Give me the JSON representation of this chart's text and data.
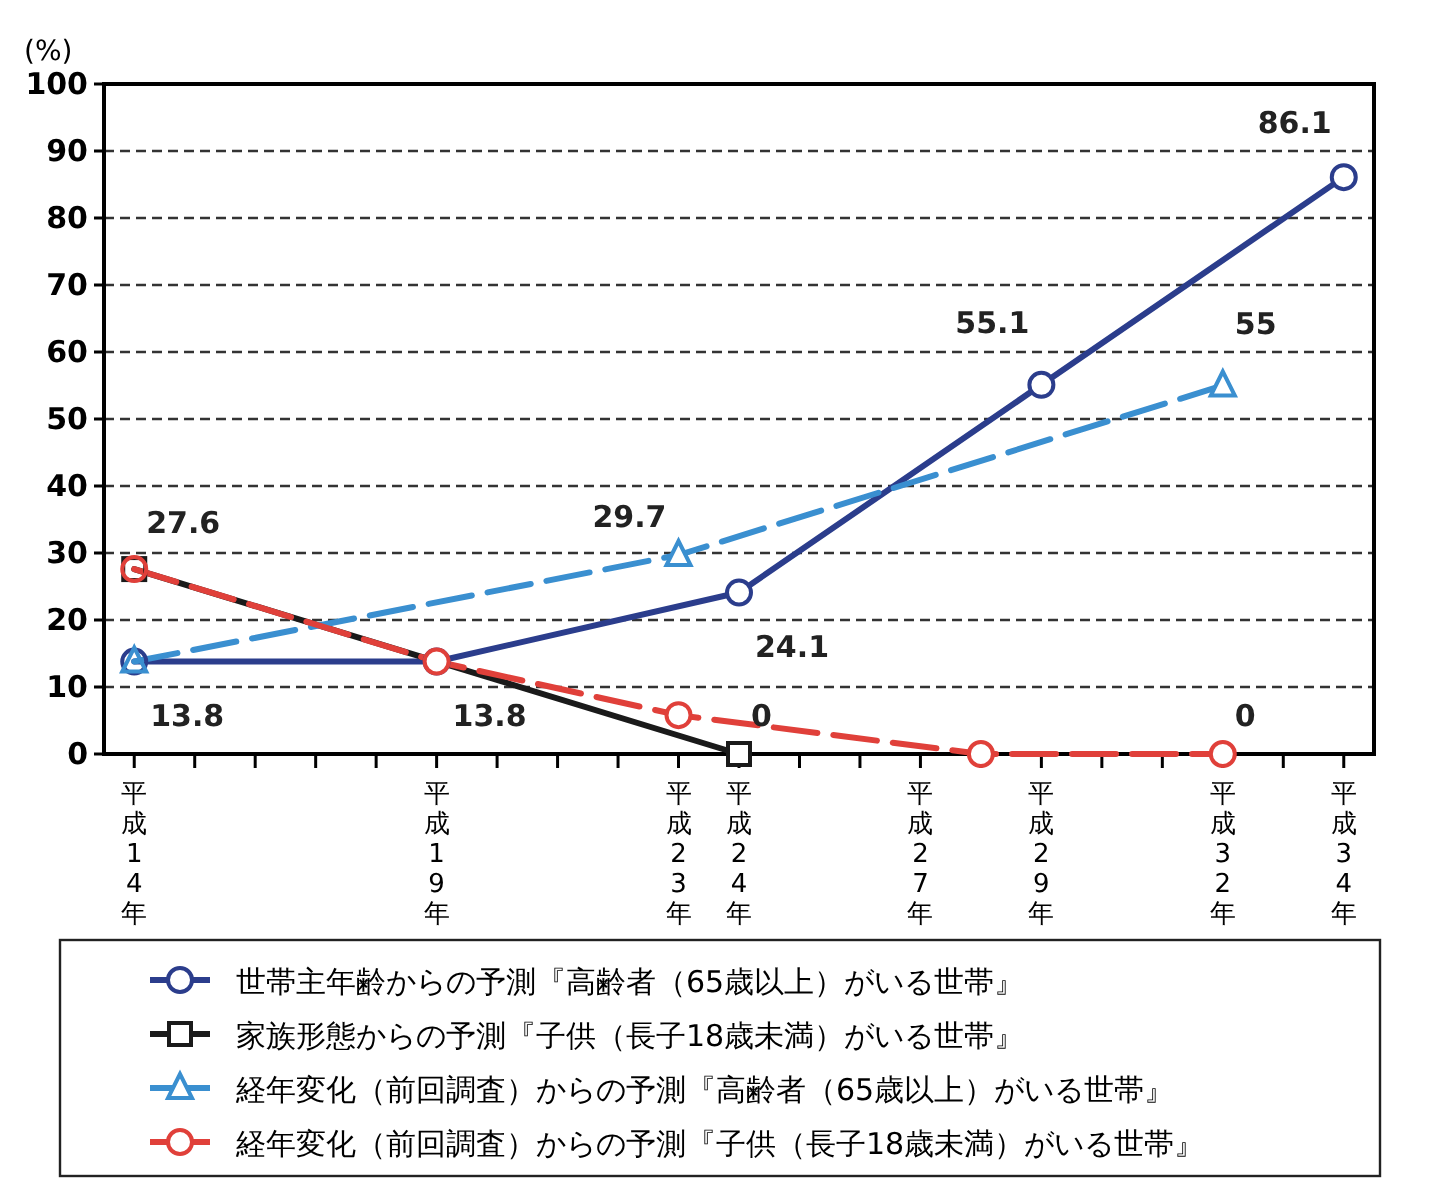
{
  "chart_data": {
    "type": "line",
    "ylabel": "(%)",
    "ylim": [
      0,
      100
    ],
    "yticks": [
      0,
      10,
      20,
      30,
      40,
      50,
      60,
      70,
      80,
      90,
      100
    ],
    "categories": [
      "平成14年",
      null,
      null,
      null,
      null,
      "平成19年",
      null,
      null,
      null,
      "平成23年",
      "平成24年",
      null,
      null,
      "平成27年",
      null,
      "平成29年",
      null,
      null,
      "平成32年",
      null,
      "平成34年"
    ],
    "grid": "y",
    "legend": "bottom",
    "series": [
      {
        "name": "世帯主年齢からの予測『高齢者（65歳以上）がいる世帯』",
        "color": "#2b3d8c",
        "marker": "circle",
        "line_style": "solid",
        "values": [
          13.8,
          null,
          null,
          null,
          null,
          13.8,
          null,
          null,
          null,
          null,
          24.1,
          null,
          null,
          null,
          null,
          55.1,
          null,
          null,
          null,
          null,
          86.1
        ],
        "value_labels": [
          "13.8",
          null,
          null,
          null,
          null,
          "13.8",
          null,
          null,
          null,
          null,
          "24.1",
          null,
          null,
          null,
          null,
          "55.1",
          null,
          null,
          null,
          null,
          "86.1"
        ]
      },
      {
        "name": "家族形態からの予測『子供（長子18歳未満）がいる世帯』",
        "color": "#1a1a1a",
        "marker": "square",
        "line_style": "solid",
        "values": [
          27.6,
          null,
          null,
          null,
          null,
          null,
          null,
          null,
          null,
          null,
          0,
          null,
          null,
          null,
          null,
          null,
          null,
          null,
          null,
          null,
          null
        ],
        "value_labels": [
          "27.6",
          null,
          null,
          null,
          null,
          null,
          null,
          null,
          null,
          null,
          "0",
          null,
          null,
          null,
          null,
          null,
          null,
          null,
          null,
          null,
          null
        ]
      },
      {
        "name": "経年変化（前回調査）からの予測『高齢者（65歳以上）がいる世帯』",
        "color": "#3a8fd0",
        "marker": "triangle",
        "line_style": "dashed",
        "values": [
          13.8,
          null,
          null,
          null,
          null,
          null,
          null,
          null,
          null,
          29.7,
          null,
          null,
          null,
          null,
          null,
          null,
          null,
          null,
          55,
          null,
          null
        ],
        "value_labels": [
          null,
          null,
          null,
          null,
          null,
          null,
          null,
          null,
          null,
          "29.7",
          null,
          null,
          null,
          null,
          null,
          null,
          null,
          null,
          "55",
          null,
          null
        ]
      },
      {
        "name": "経年変化（前回調査）からの予測『子供（長子18歳未満）がいる世帯』",
        "color": "#e0403a",
        "marker": "circle",
        "line_style": "dashed",
        "values": [
          27.6,
          null,
          null,
          null,
          null,
          13.8,
          null,
          null,
          null,
          5.8,
          null,
          null,
          null,
          null,
          0,
          null,
          null,
          null,
          0,
          null,
          null
        ],
        "value_labels": [
          null,
          null,
          null,
          null,
          null,
          null,
          null,
          null,
          null,
          null,
          null,
          null,
          null,
          null,
          null,
          null,
          null,
          null,
          "0",
          null,
          null
        ]
      }
    ]
  }
}
